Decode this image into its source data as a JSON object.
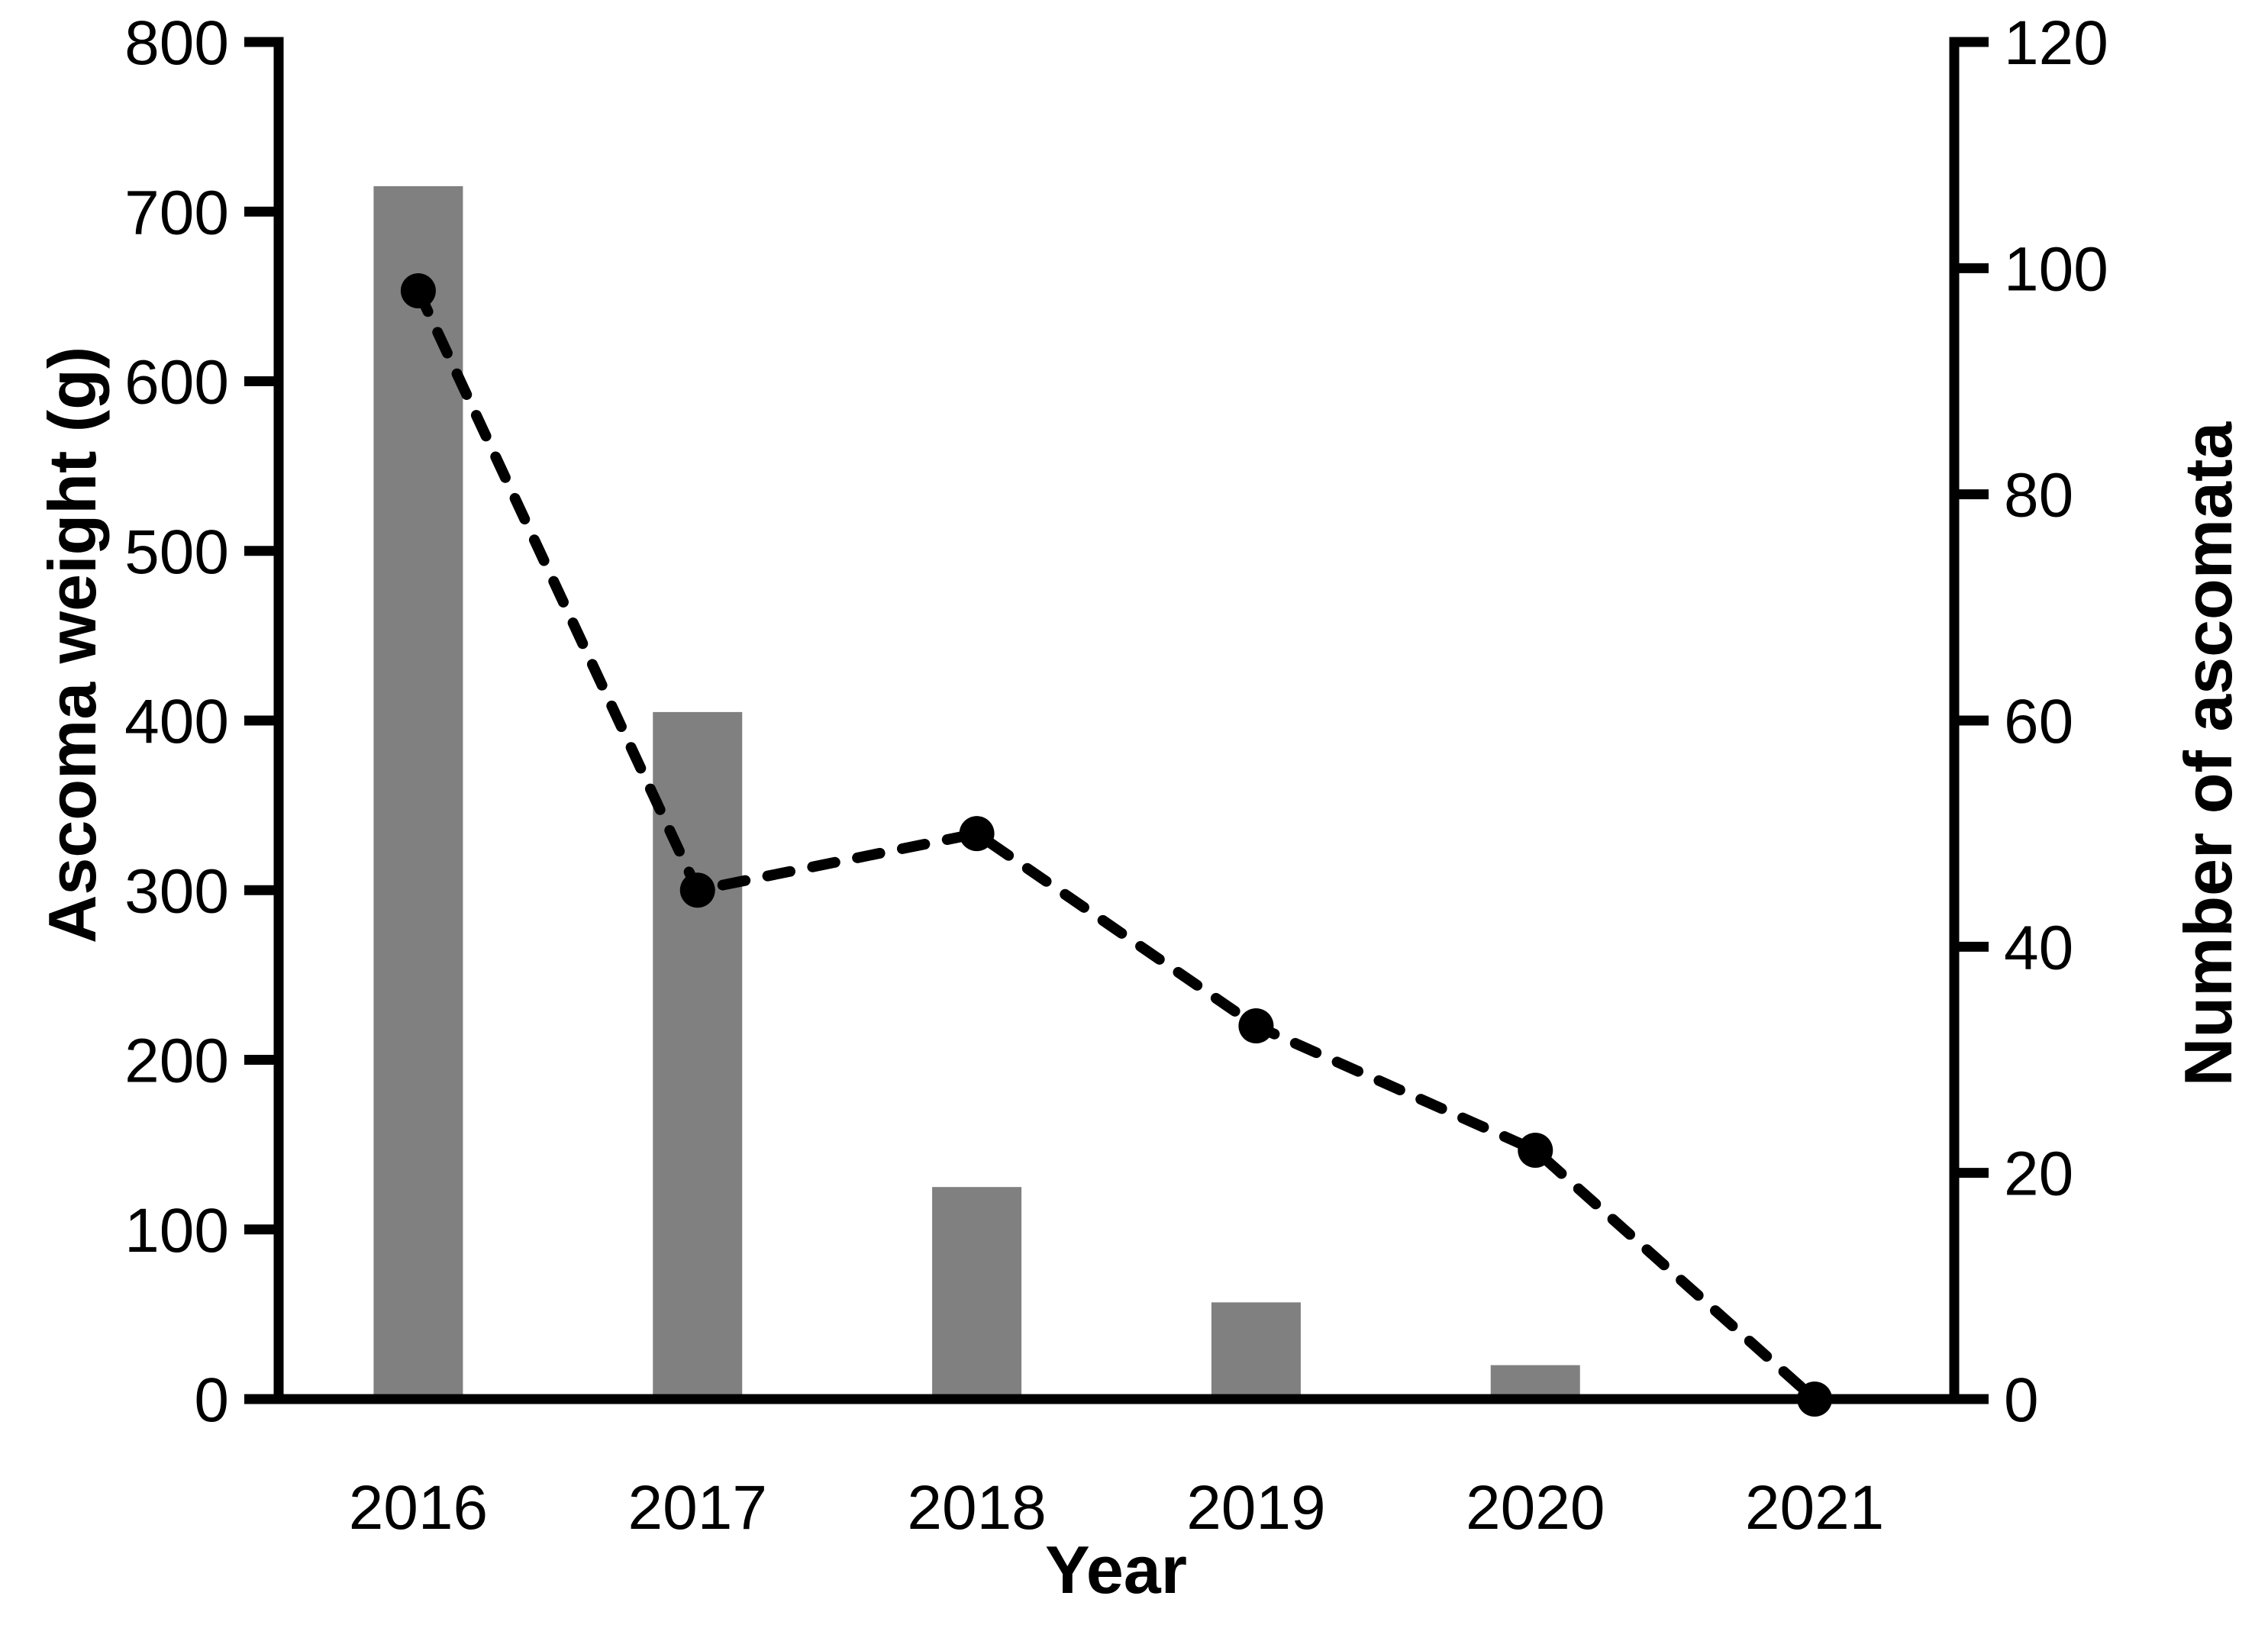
{
  "chart_data": {
    "type": "bar-line-combo",
    "title": "",
    "xlabel": "Year",
    "categories": [
      "2016",
      "2017",
      "2018",
      "2019",
      "2020",
      "2021"
    ],
    "left_axis": {
      "label": "Ascoma weight (g)",
      "min": 0,
      "max": 800,
      "ticks": [
        0,
        100,
        200,
        300,
        400,
        500,
        600,
        700,
        800
      ]
    },
    "right_axis": {
      "label": "Number of ascomata",
      "min": 0,
      "max": 120,
      "ticks": [
        0,
        20,
        40,
        60,
        80,
        100,
        120
      ]
    },
    "series": [
      {
        "name": "Ascoma weight (g)",
        "type": "bar",
        "axis": "left",
        "color": "#808080",
        "values": [
          715,
          405,
          125,
          57,
          20,
          0
        ]
      },
      {
        "name": "Number of ascomata",
        "type": "line",
        "axis": "right",
        "color": "#000000",
        "line_style": "dashed",
        "marker": "circle",
        "values": [
          98,
          45,
          50,
          33,
          22,
          0
        ]
      }
    ],
    "legend_position": "none",
    "grid": false,
    "background_color": "#ffffff",
    "axis_color": "#000000"
  }
}
